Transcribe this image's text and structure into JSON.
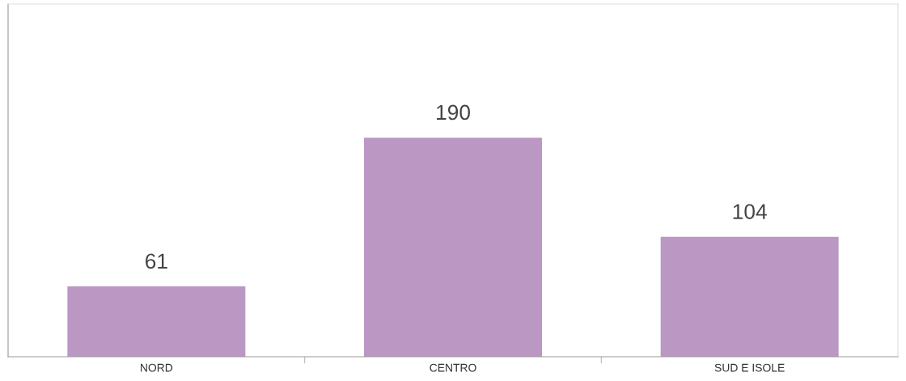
{
  "chart_data": {
    "type": "bar",
    "categories": [
      "NORD",
      "CENTRO",
      "SUD E ISOLE"
    ],
    "values": [
      61,
      190,
      104
    ],
    "color": "#bb97c4",
    "data_labels": true,
    "grid": false,
    "legend": false
  }
}
